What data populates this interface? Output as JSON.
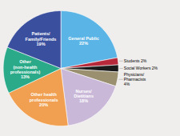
{
  "chart_data": {
    "type": "pie",
    "values": [
      22,
      2,
      2,
      4,
      18,
      20,
      13,
      19
    ],
    "value_labels": [
      "General Public\n22%",
      "Students 2%",
      "Social Workers 2%",
      "Physicians/\nPharmacists\n4%",
      "Nurses/\nDietitians\n18%",
      "Other health\nprofessionals\n20%",
      "Other\n(non-health\nprofessionals)\n13%",
      "Patients/\nFamily/Friends\n19%"
    ],
    "colors": [
      "#5ab4e5",
      "#b5293a",
      "#1a1a1a",
      "#9a9070",
      "#c9b8d8",
      "#f0a050",
      "#2aaa88",
      "#3a4f9e"
    ],
    "data_labels": true
  }
}
